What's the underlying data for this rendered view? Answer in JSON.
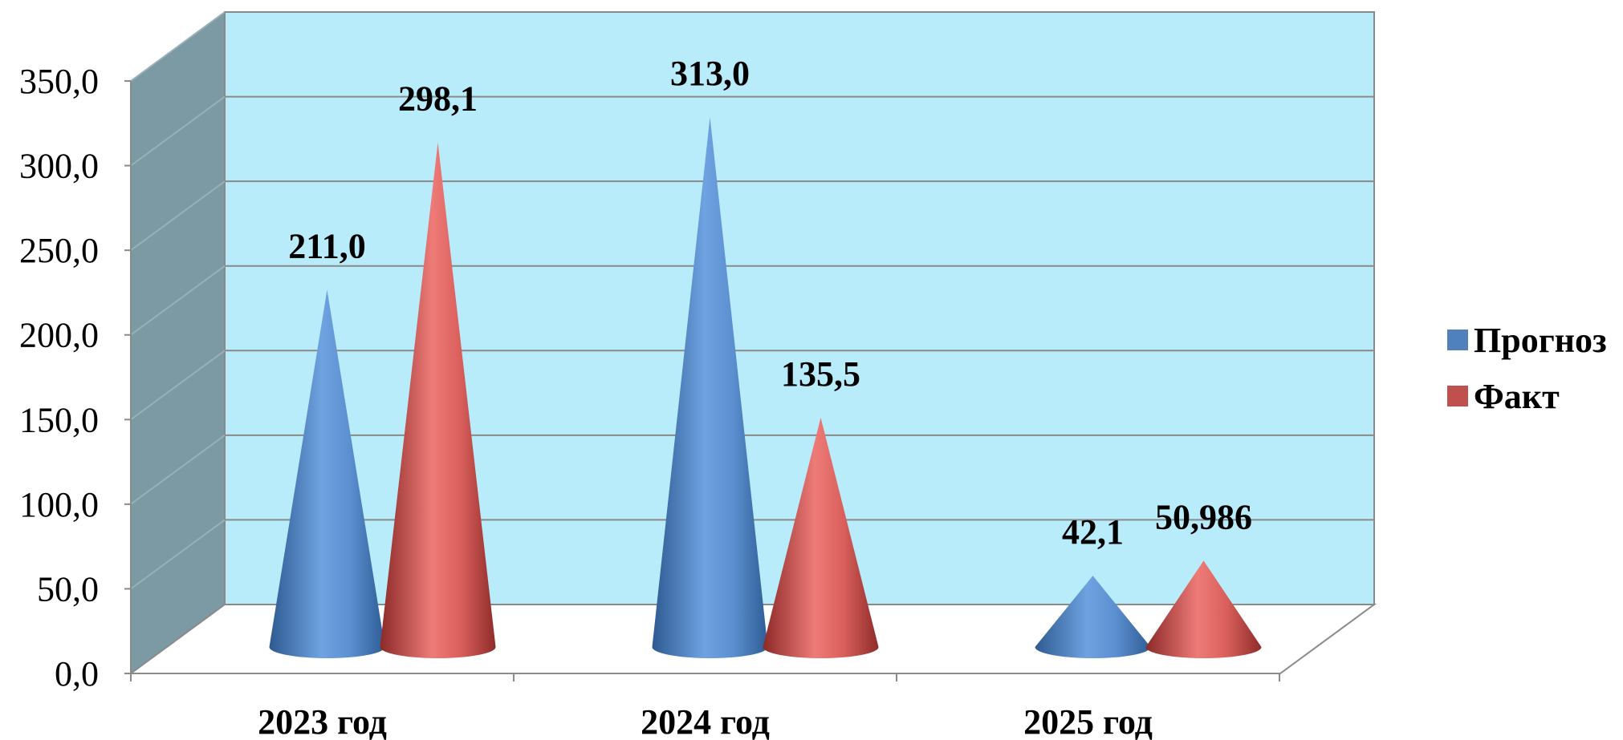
{
  "chart_data": {
    "type": "bar",
    "style": "3d-cone",
    "categories": [
      "2023 год",
      "2024 год",
      "2025 год"
    ],
    "series": [
      {
        "name": "Прогноз",
        "color": "#4f81bd",
        "values": [
          211.0,
          313.0,
          42.1
        ],
        "labels": [
          "211,0",
          "313,0",
          "42,1"
        ]
      },
      {
        "name": "Факт",
        "color": "#c0504d",
        "values": [
          298.1,
          135.5,
          50.986
        ],
        "labels": [
          "298,1",
          "135,5",
          "50,986"
        ]
      }
    ],
    "yticks": [
      "0,0",
      "50,0",
      "100,0",
      "150,0",
      "200,0",
      "250,0",
      "300,0",
      "350,0"
    ],
    "ylim": [
      0,
      350
    ],
    "grid": true,
    "legend_position": "right",
    "wall_color": "#b8ecfa",
    "side_wall_color": "#7b9aa4"
  }
}
